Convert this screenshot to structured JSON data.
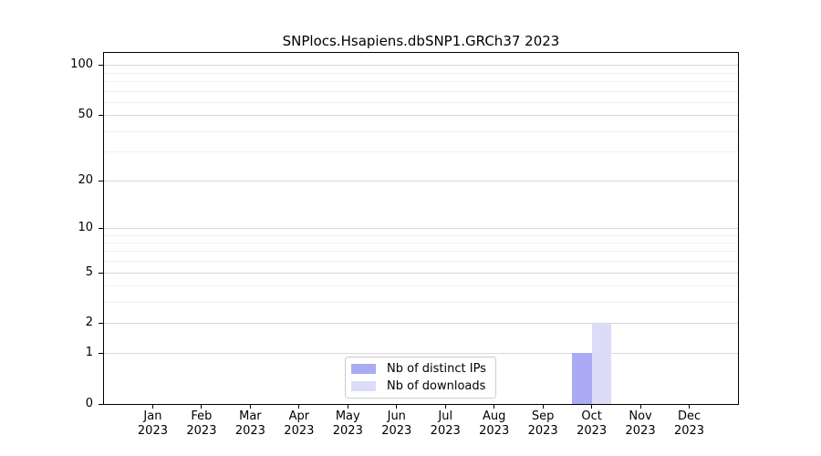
{
  "chart_data": {
    "type": "bar",
    "title": "SNPlocs.Hsapiens.dbSNP1.GRCh37 2023",
    "categories": [
      {
        "month": "Jan",
        "year": "2023"
      },
      {
        "month": "Feb",
        "year": "2023"
      },
      {
        "month": "Mar",
        "year": "2023"
      },
      {
        "month": "Apr",
        "year": "2023"
      },
      {
        "month": "May",
        "year": "2023"
      },
      {
        "month": "Jun",
        "year": "2023"
      },
      {
        "month": "Jul",
        "year": "2023"
      },
      {
        "month": "Aug",
        "year": "2023"
      },
      {
        "month": "Sep",
        "year": "2023"
      },
      {
        "month": "Oct",
        "year": "2023"
      },
      {
        "month": "Nov",
        "year": "2023"
      },
      {
        "month": "Dec",
        "year": "2023"
      }
    ],
    "series": [
      {
        "name": "Nb of distinct IPs",
        "color": "#AAAAF5",
        "values": [
          0,
          0,
          0,
          0,
          0,
          0,
          0,
          0,
          0,
          1,
          0,
          0
        ]
      },
      {
        "name": "Nb of downloads",
        "color": "#DCDCF8",
        "values": [
          0,
          0,
          0,
          0,
          0,
          0,
          0,
          0,
          0,
          2,
          0,
          0
        ]
      }
    ],
    "xlabel": "",
    "ylabel": "",
    "yscale": "log1p",
    "ylim": [
      0,
      118
    ],
    "yticks": [
      0,
      1,
      2,
      5,
      10,
      20,
      50,
      100
    ],
    "yticks_minor": [
      3,
      4,
      6,
      7,
      8,
      9,
      30,
      40,
      60,
      70,
      80,
      90
    ],
    "grid": true,
    "legend_position": "bottom-center-inside"
  },
  "colors": {
    "major_grid": "#d9d9d9",
    "minor_grid": "#f1f1f1",
    "spine": "#000000",
    "legend_border": "#cccccc",
    "background": "#ffffff"
  }
}
